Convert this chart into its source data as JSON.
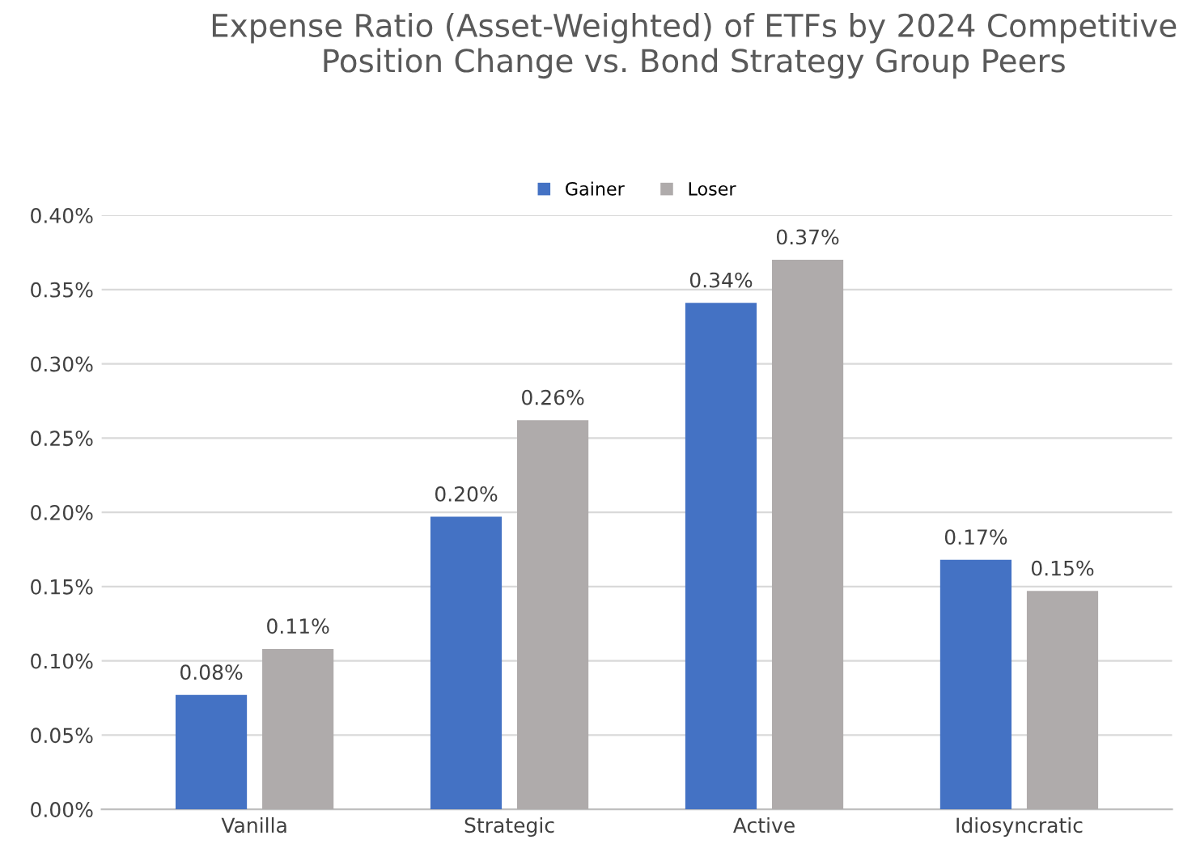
{
  "chart_data": {
    "type": "bar",
    "title": "Expense Ratio (Asset-Weighted) of ETFs by 2024 Competitive Position Change vs. Bond Strategy Group Peers",
    "categories": [
      "Vanilla",
      "Strategic",
      "Active",
      "Idiosyncratic"
    ],
    "series": [
      {
        "name": "Gainer",
        "color": "#4472c4",
        "values": [
          0.077,
          0.197,
          0.341,
          0.168
        ],
        "value_labels": [
          "0.08%",
          "0.20%",
          "0.34%",
          "0.17%"
        ]
      },
      {
        "name": "Loser",
        "color": "#afabab",
        "values": [
          0.108,
          0.262,
          0.37,
          0.147
        ],
        "value_labels": [
          "0.11%",
          "0.26%",
          "0.37%",
          "0.15%"
        ]
      }
    ],
    "ylim": [
      0,
      0.4
    ],
    "yticks": [
      {
        "value": 0,
        "label": "0.00%"
      },
      {
        "value": 0.05,
        "label": "0.05%"
      },
      {
        "value": 0.1,
        "label": "0.10%"
      },
      {
        "value": 0.15,
        "label": "0.15%"
      },
      {
        "value": 0.2,
        "label": "0.20%"
      },
      {
        "value": 0.25,
        "label": "0.25%"
      },
      {
        "value": 0.3,
        "label": "0.30%"
      },
      {
        "value": 0.35,
        "label": "0.35%"
      },
      {
        "value": 0.4,
        "label": "0.40%"
      }
    ],
    "grid": "y",
    "legend": "top"
  }
}
